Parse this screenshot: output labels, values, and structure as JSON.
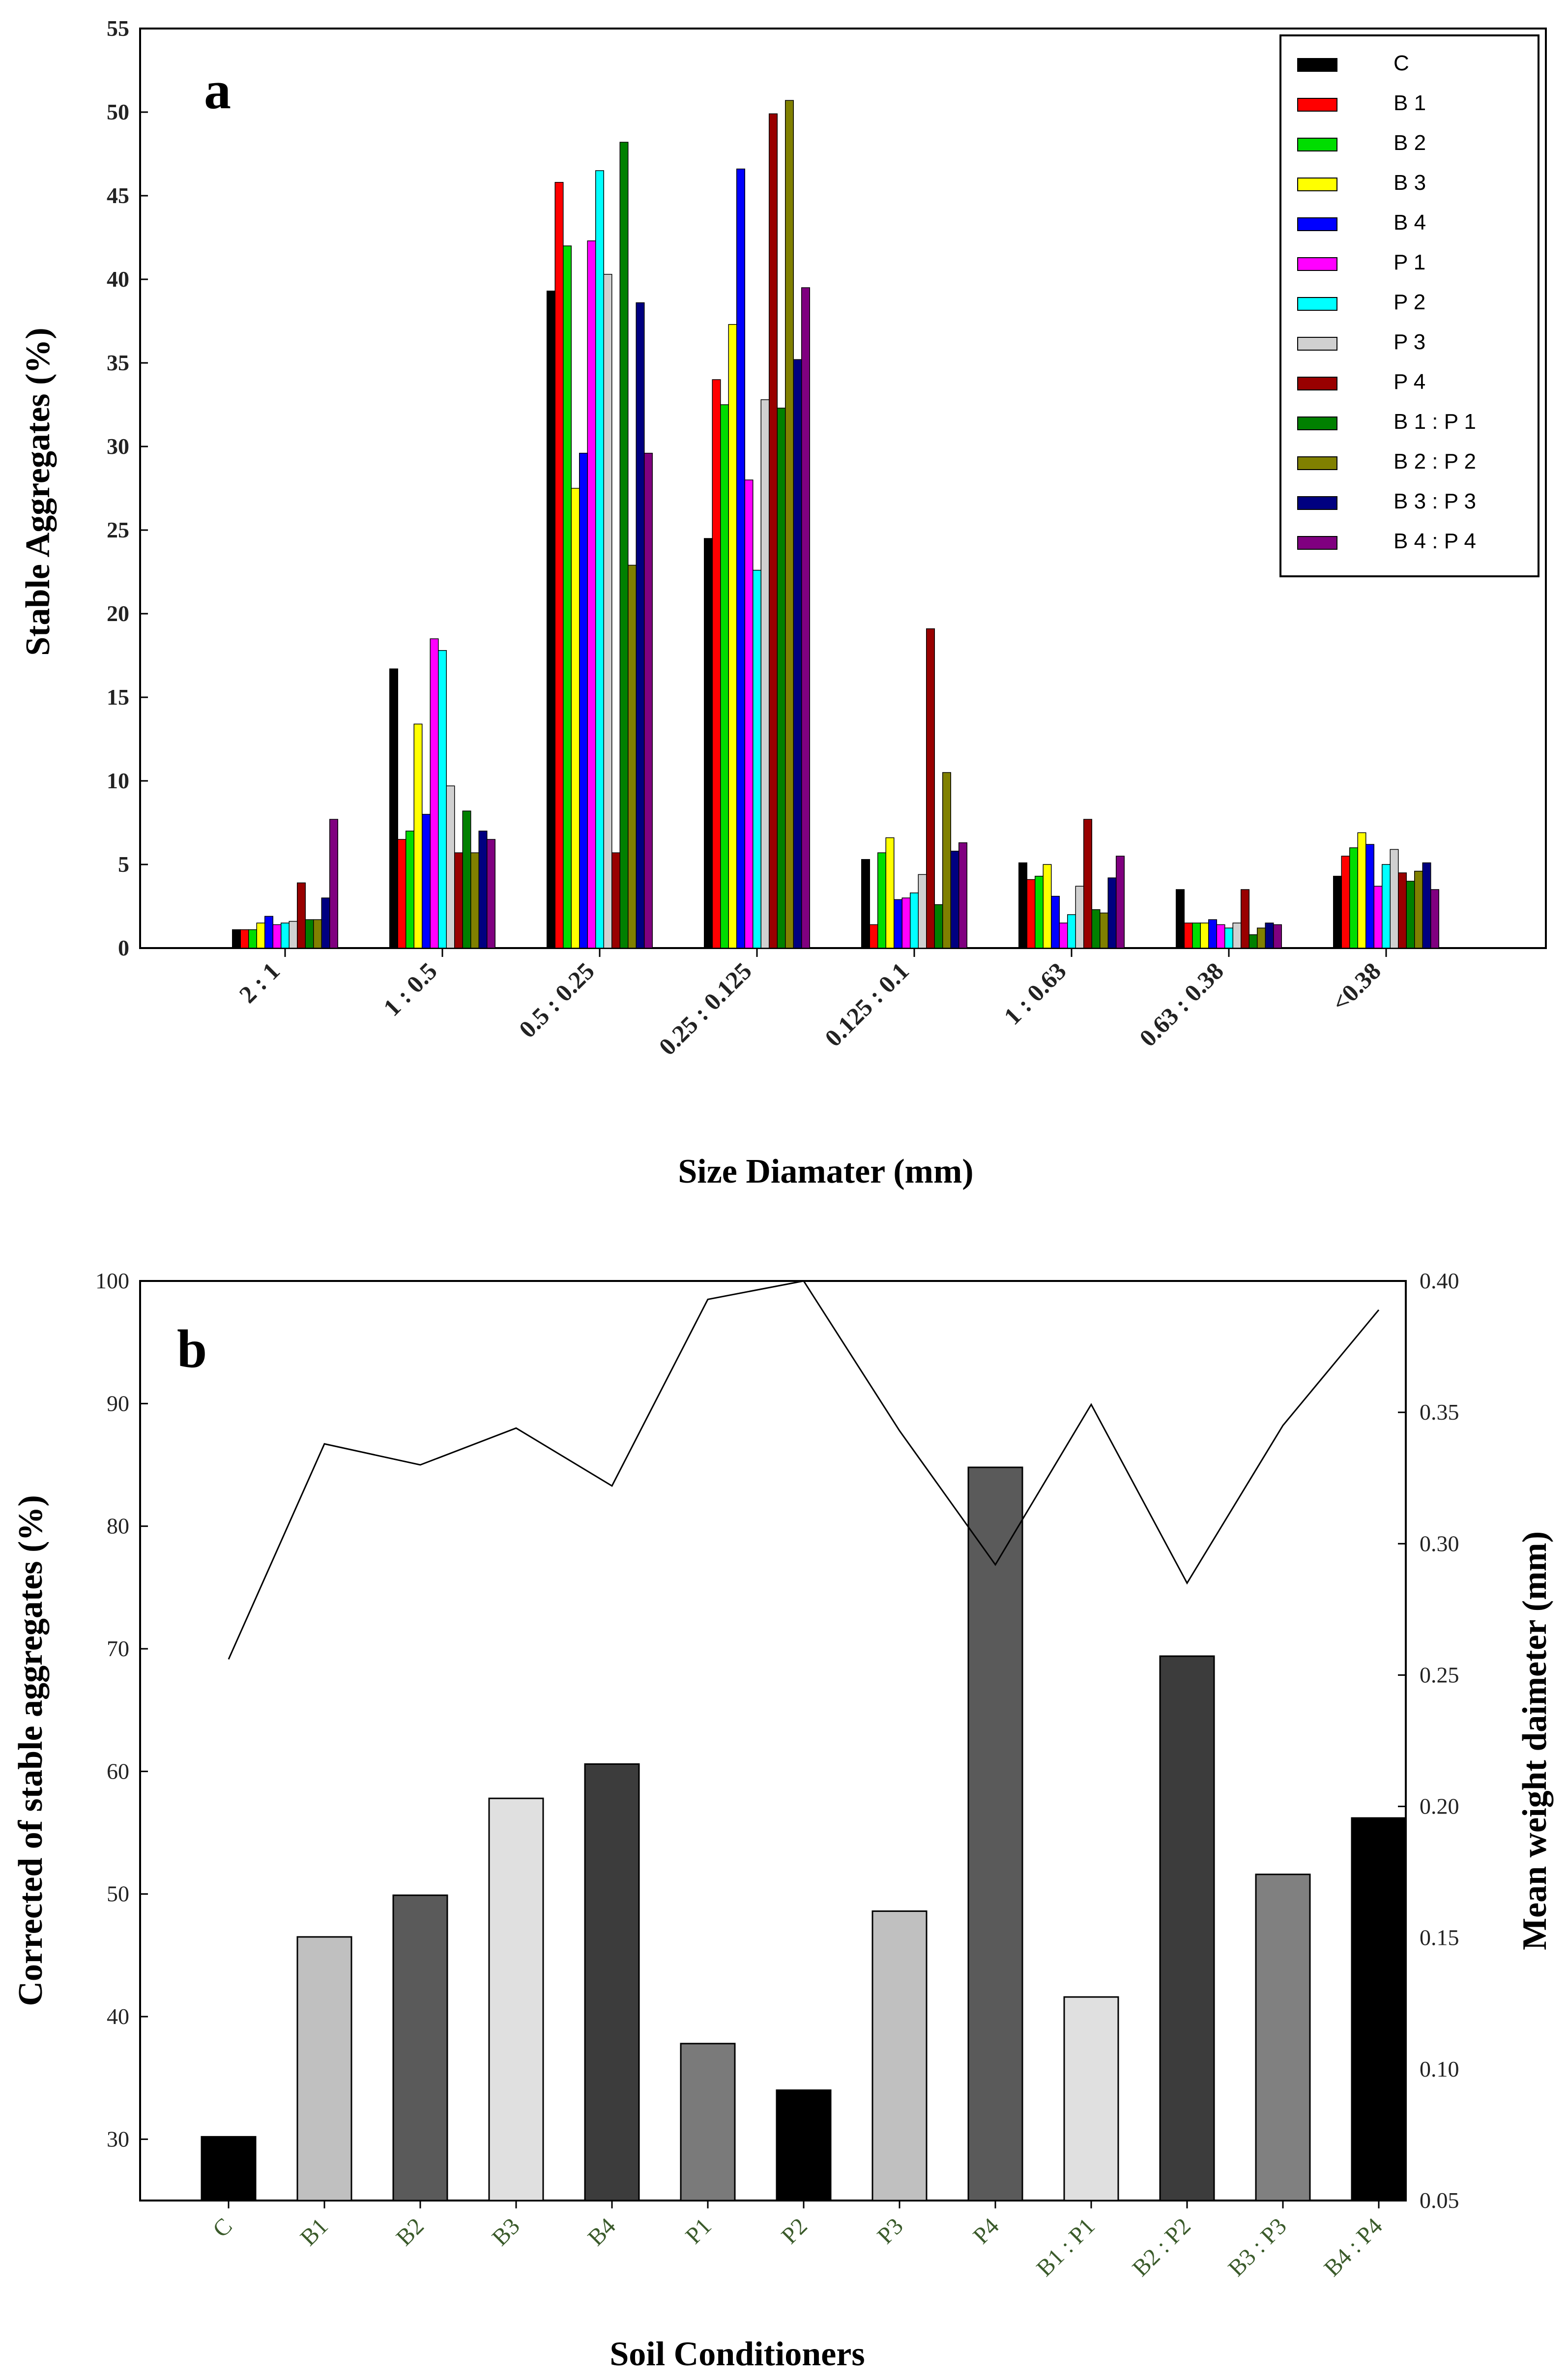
{
  "chart_data": [
    {
      "type": "bar",
      "panel_label": "a",
      "xlabel": "Size Diamater (mm)",
      "ylabel": "Stable Aggregates (%)",
      "ylim": [
        0,
        55
      ],
      "yticks": [
        0,
        5,
        10,
        15,
        20,
        25,
        30,
        35,
        40,
        45,
        50,
        55
      ],
      "categories": [
        "2 : 1",
        "1 : 0.5",
        "0.5 : 0.25",
        "0.25 : 0.125",
        "0.125 : 0.1",
        "1 : 0.63",
        "0.63 : 0.38",
        "<0.38"
      ],
      "legend_position": "top-right",
      "series": [
        {
          "name": "C",
          "color": "#000000",
          "values": [
            1.1,
            16.7,
            39.3,
            24.5,
            5.3,
            5.1,
            3.5,
            4.3
          ]
        },
        {
          "name": "B 1",
          "color": "#ff0000",
          "values": [
            1.1,
            6.5,
            45.8,
            34.0,
            1.4,
            4.1,
            1.5,
            5.5
          ]
        },
        {
          "name": "B 2",
          "color": "#00dd00",
          "values": [
            1.1,
            7.0,
            42.0,
            32.5,
            5.7,
            4.3,
            1.5,
            6.0
          ]
        },
        {
          "name": "B 3",
          "color": "#ffff00",
          "values": [
            1.5,
            13.4,
            27.5,
            37.3,
            6.6,
            5.0,
            1.5,
            6.9
          ]
        },
        {
          "name": "B 4",
          "color": "#0000ff",
          "values": [
            1.9,
            8.0,
            29.6,
            46.6,
            2.9,
            3.1,
            1.7,
            6.2
          ]
        },
        {
          "name": "P 1",
          "color": "#ff00ff",
          "values": [
            1.4,
            18.5,
            42.3,
            28.0,
            3.0,
            1.5,
            1.4,
            3.7
          ]
        },
        {
          "name": "P 2",
          "color": "#00ffff",
          "values": [
            1.5,
            17.8,
            46.5,
            22.6,
            3.3,
            2.0,
            1.2,
            5.0
          ]
        },
        {
          "name": "P 3",
          "color": "#d0d0d0",
          "values": [
            1.6,
            9.7,
            40.3,
            32.8,
            4.4,
            3.7,
            1.5,
            5.9
          ]
        },
        {
          "name": "P 4",
          "color": "#990000",
          "values": [
            3.9,
            5.7,
            5.7,
            49.9,
            19.1,
            7.7,
            3.5,
            4.5
          ]
        },
        {
          "name": "B 1 : P 1",
          "color": "#008000",
          "values": [
            1.7,
            8.2,
            48.2,
            32.3,
            2.6,
            2.3,
            0.8,
            4.0
          ]
        },
        {
          "name": "B 2 : P 2",
          "color": "#808000",
          "values": [
            1.7,
            5.7,
            22.9,
            50.7,
            10.5,
            2.1,
            1.2,
            4.6
          ]
        },
        {
          "name": "B 3 : P 3",
          "color": "#000080",
          "values": [
            3.0,
            7.0,
            38.6,
            35.2,
            5.8,
            4.2,
            1.5,
            5.1
          ]
        },
        {
          "name": "B 4 : P 4",
          "color": "#800080",
          "values": [
            7.7,
            6.5,
            29.6,
            39.5,
            6.3,
            5.5,
            1.4,
            3.5
          ]
        }
      ]
    },
    {
      "type": "bar",
      "panel_label": "b",
      "xlabel": "Soil Conditioners",
      "ylabel": "Corrected of stable aggregates (%)",
      "ylabel_right": "Mean weight daimeter (mm)",
      "ylim": [
        25,
        100
      ],
      "yticks": [
        30,
        40,
        50,
        60,
        70,
        80,
        90,
        100
      ],
      "ylim_right": [
        0.05,
        0.4
      ],
      "yticks_right": [
        "0.05",
        "0.10",
        "0.15",
        "0.20",
        "0.25",
        "0.30",
        "0.35",
        "0.40"
      ],
      "categories": [
        "C",
        "B1",
        "B2",
        "B3",
        "B4",
        "P1",
        "P2",
        "P3",
        "P4",
        "B1 : P1",
        "B2 : P2",
        "B3 : P3",
        "B4 : P4"
      ],
      "series": [
        {
          "name": "Corrected of stable aggregates (%)",
          "kind": "bar",
          "values": [
            30.2,
            46.5,
            49.9,
            57.8,
            60.6,
            37.8,
            34.0,
            48.6,
            84.8,
            41.6,
            69.4,
            51.6,
            56.2
          ],
          "colors": [
            "#000000",
            "#c0c0c0",
            "#5a5a5a",
            "#e0e0e0",
            "#3c3c3c",
            "#7a7a7a",
            "#000000",
            "#c0c0c0",
            "#5a5a5a",
            "#e0e0e0",
            "#3c3c3c",
            "#808080",
            "#000000"
          ]
        },
        {
          "name": "Mean weight daimeter (mm)",
          "kind": "line",
          "axis": "right",
          "color": "#000000",
          "values": [
            0.256,
            0.338,
            0.33,
            0.344,
            0.322,
            0.393,
            0.4,
            0.343,
            0.292,
            0.353,
            0.285,
            0.345,
            0.389
          ]
        }
      ]
    }
  ]
}
